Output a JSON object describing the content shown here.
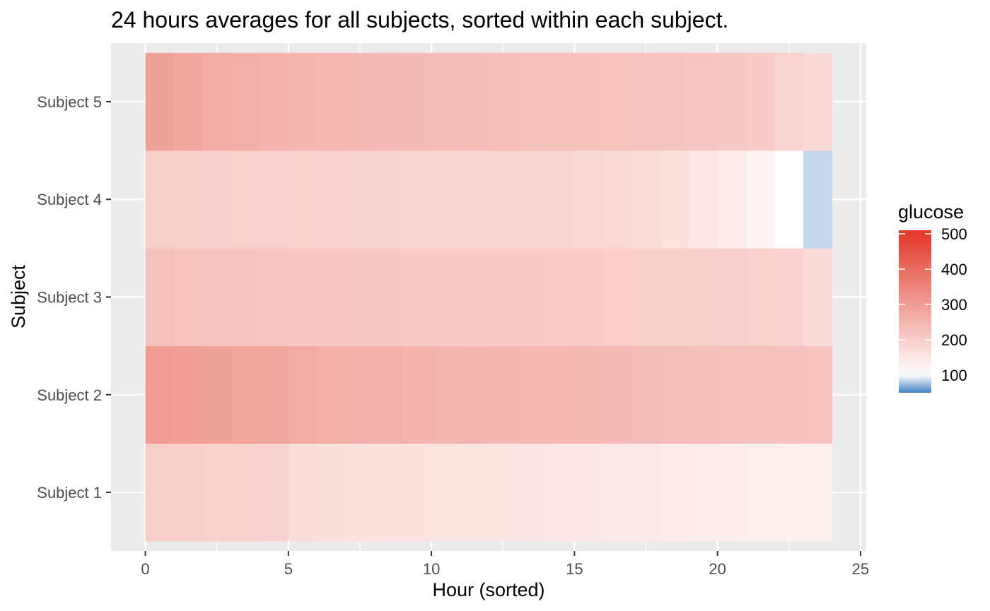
{
  "chart_data": {
    "type": "heatmap",
    "title": "24 hours averages for all subjects, sorted within each subject.",
    "xlabel": "Hour (sorted)",
    "ylabel": "Subject",
    "xlim": [
      -1.2,
      25.2
    ],
    "x_ticks": [
      0,
      5,
      10,
      15,
      20,
      25
    ],
    "x": [
      0,
      1,
      2,
      3,
      4,
      5,
      6,
      7,
      8,
      9,
      10,
      11,
      12,
      13,
      14,
      15,
      16,
      17,
      18,
      19,
      20,
      21,
      22,
      23
    ],
    "categories": [
      "Subject 1",
      "Subject 2",
      "Subject 3",
      "Subject 4",
      "Subject 5"
    ],
    "series": [
      {
        "name": "Subject 1",
        "values": [
          200,
          198,
          196,
          194,
          192,
          170,
          165,
          162,
          160,
          158,
          156,
          155,
          153,
          152,
          150,
          148,
          147,
          146,
          140,
          138,
          135,
          133,
          130,
          128
        ]
      },
      {
        "name": "Subject 2",
        "values": [
          300,
          295,
          290,
          285,
          280,
          270,
          265,
          262,
          260,
          255,
          252,
          250,
          248,
          246,
          244,
          242,
          240,
          235,
          232,
          230,
          228,
          226,
          224,
          222
        ]
      },
      {
        "name": "Subject 3",
        "values": [
          225,
          222,
          220,
          218,
          216,
          214,
          212,
          210,
          209,
          208,
          207,
          206,
          205,
          204,
          203,
          202,
          201,
          200,
          199,
          198,
          197,
          196,
          195,
          175
        ]
      },
      {
        "name": "Subject 4",
        "values": [
          200,
          198,
          197,
          196,
          195,
          194,
          193,
          192,
          191,
          190,
          189,
          188,
          187,
          186,
          185,
          180,
          175,
          170,
          160,
          150,
          140,
          120,
          100,
          85
        ]
      },
      {
        "name": "Subject 5",
        "values": [
          290,
          280,
          270,
          262,
          255,
          250,
          246,
          242,
          240,
          238,
          235,
          233,
          230,
          228,
          226,
          224,
          222,
          220,
          218,
          216,
          210,
          205,
          190,
          180
        ]
      }
    ],
    "legend": {
      "title": "glucose",
      "position": "right",
      "ticks": [
        100,
        200,
        300,
        400,
        500
      ],
      "range": [
        50,
        510
      ],
      "colors": {
        "low": "#3f7fbf",
        "mid": "#ffffff",
        "high": "#e23a2c"
      }
    },
    "panel_background": "#ebebeb",
    "grid": true,
    "grid_color": "#ffffff"
  }
}
